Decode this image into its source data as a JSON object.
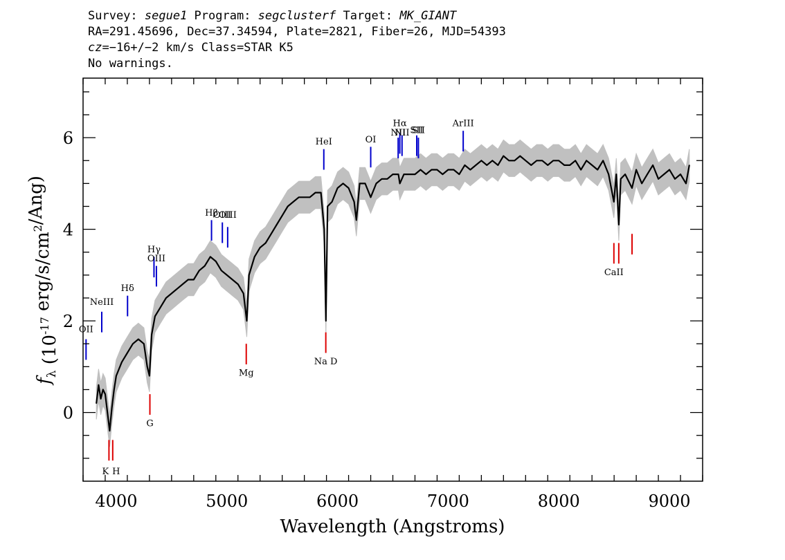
{
  "header": {
    "line1": {
      "survey_label": "Survey: ",
      "survey": "segue1",
      "program_label": " Program: ",
      "program": "segclusterf",
      "target_label": " Target: ",
      "target": "MK_GIANT"
    },
    "line2": "RA=291.45696, Dec=37.34594, Plate=2821, Fiber=26, MJD=54393",
    "line3": {
      "cz_label": "cz",
      "cz_value": "=−16+/−2 km/s Class=STAR K5"
    },
    "line4": "No warnings."
  },
  "colors": {
    "spectrum": "#000000",
    "error_band": "#c0c0c0",
    "emission_lines": "#0000cc",
    "absorption_lines": "#dd0000"
  },
  "chart_data": {
    "type": "line",
    "title": "",
    "xlabel": "Wavelength (Angstroms)",
    "ylabel": "f_λ (10^-17 erg/s/cm^2/Ang)",
    "xlim": [
      3700,
      9300
    ],
    "ylim": [
      -1.5,
      7.3
    ],
    "xticks": [
      4000,
      5000,
      6000,
      7000,
      8000,
      9000
    ],
    "yticks": [
      0,
      2,
      4,
      6
    ],
    "grid": false,
    "series": [
      {
        "x": [
          3820,
          3840,
          3860,
          3880,
          3900,
          3920,
          3940,
          3960,
          3980,
          4000,
          4050,
          4100,
          4150,
          4200,
          4250,
          4280,
          4300,
          4320,
          4350,
          4400,
          4450,
          4500,
          4550,
          4600,
          4650,
          4700,
          4750,
          4800,
          4850,
          4900,
          4950,
          5000,
          5050,
          5100,
          5150,
          5180,
          5200,
          5250,
          5300,
          5350,
          5400,
          5450,
          5500,
          5550,
          5600,
          5650,
          5700,
          5750,
          5800,
          5850,
          5880,
          5895,
          5910,
          5950,
          6000,
          6050,
          6100,
          6150,
          6170,
          6200,
          6250,
          6300,
          6350,
          6400,
          6450,
          6500,
          6550,
          6563,
          6600,
          6650,
          6700,
          6750,
          6800,
          6850,
          6900,
          6950,
          7000,
          7050,
          7100,
          7150,
          7200,
          7250,
          7300,
          7350,
          7400,
          7450,
          7500,
          7550,
          7600,
          7650,
          7700,
          7750,
          7800,
          7850,
          7900,
          7950,
          8000,
          8050,
          8100,
          8150,
          8200,
          8250,
          8300,
          8350,
          8400,
          8450,
          8498,
          8520,
          8542,
          8560,
          8600,
          8662,
          8700,
          8750,
          8800,
          8850,
          8900,
          8950,
          9000,
          9050,
          9100,
          9150,
          9180
        ],
        "y": [
          0.2,
          0.6,
          0.3,
          0.5,
          0.4,
          0.0,
          -0.4,
          0.1,
          0.5,
          0.8,
          1.1,
          1.3,
          1.5,
          1.6,
          1.5,
          1.0,
          0.8,
          1.7,
          2.1,
          2.3,
          2.5,
          2.6,
          2.7,
          2.8,
          2.9,
          2.9,
          3.1,
          3.2,
          3.4,
          3.3,
          3.1,
          3.0,
          2.9,
          2.8,
          2.6,
          2.0,
          3.0,
          3.4,
          3.6,
          3.7,
          3.9,
          4.1,
          4.3,
          4.5,
          4.6,
          4.7,
          4.7,
          4.7,
          4.8,
          4.8,
          4.0,
          2.0,
          4.5,
          4.6,
          4.9,
          5.0,
          4.9,
          4.6,
          4.2,
          5.0,
          5.0,
          4.7,
          5.0,
          5.1,
          5.1,
          5.2,
          5.2,
          5.0,
          5.2,
          5.2,
          5.2,
          5.3,
          5.2,
          5.3,
          5.3,
          5.2,
          5.3,
          5.3,
          5.2,
          5.4,
          5.3,
          5.4,
          5.5,
          5.4,
          5.5,
          5.4,
          5.6,
          5.5,
          5.5,
          5.6,
          5.5,
          5.4,
          5.5,
          5.5,
          5.4,
          5.5,
          5.5,
          5.4,
          5.4,
          5.5,
          5.3,
          5.5,
          5.4,
          5.3,
          5.5,
          5.2,
          4.6,
          5.2,
          4.1,
          5.1,
          5.2,
          4.9,
          5.3,
          5.0,
          5.2,
          5.4,
          5.1,
          5.2,
          5.3,
          5.1,
          5.2,
          5.0,
          5.4
        ]
      }
    ],
    "emission_lines": [
      {
        "label": "OII",
        "x": 3727,
        "y_bottom": 1.15,
        "y_top": 1.6,
        "label_y": 1.75
      },
      {
        "label": "NeIII",
        "x": 3869,
        "y_bottom": 1.75,
        "y_top": 2.2,
        "label_y": 2.35
      },
      {
        "label": "Hδ",
        "x": 4102,
        "y_bottom": 2.1,
        "y_top": 2.55,
        "label_y": 2.65
      },
      {
        "label": "Hγ",
        "x": 4341,
        "y_bottom": 2.95,
        "y_top": 3.4,
        "label_y": 3.5
      },
      {
        "label": "OIII",
        "x": 4363,
        "y_bottom": 2.75,
        "y_top": 3.2,
        "label_y": 3.3
      },
      {
        "label": "Hβ",
        "x": 4861,
        "y_bottom": 3.75,
        "y_top": 4.2,
        "label_y": 4.3
      },
      {
        "label": "OIII",
        "x": 4959,
        "y_bottom": 3.7,
        "y_top": 4.15,
        "label_y": 4.25
      },
      {
        "label": "OIII",
        "x": 5007,
        "y_bottom": 3.6,
        "y_top": 4.05,
        "label_y": 4.25
      },
      {
        "label": "HeI",
        "x": 5876,
        "y_bottom": 5.3,
        "y_top": 5.75,
        "label_y": 5.85
      },
      {
        "label": "OI",
        "x": 6300,
        "y_bottom": 5.35,
        "y_top": 5.8,
        "label_y": 5.9
      },
      {
        "label": "NII",
        "x": 6548,
        "y_bottom": 5.55,
        "y_top": 6.0,
        "label_y": 6.05
      },
      {
        "label": "Hα",
        "x": 6563,
        "y_bottom": 5.65,
        "y_top": 6.1,
        "label_y": 6.25
      },
      {
        "label": "NII",
        "x": 6583,
        "y_bottom": 5.6,
        "y_top": 6.05,
        "label_y": 6.05
      },
      {
        "label": "SII",
        "x": 6716,
        "y_bottom": 5.6,
        "y_top": 6.05,
        "label_y": 6.1
      },
      {
        "label": "SII",
        "x": 6731,
        "y_bottom": 5.55,
        "y_top": 6.0,
        "label_y": 6.1
      },
      {
        "label": "ArIII",
        "x": 7136,
        "y_bottom": 5.7,
        "y_top": 6.15,
        "label_y": 6.25
      }
    ],
    "absorption_lines": [
      {
        "label": "K",
        "x": 3934,
        "y_top": -0.6,
        "y_bottom": -1.05,
        "label_y": -1.35
      },
      {
        "label": "H",
        "x": 3968,
        "y_top": -0.6,
        "y_bottom": -1.05,
        "label_y": -1.35
      },
      {
        "label": "G",
        "x": 4304,
        "y_top": 0.4,
        "y_bottom": -0.05,
        "label_y": -0.3
      },
      {
        "label": "Mg",
        "x": 5175,
        "y_top": 1.5,
        "y_bottom": 1.05,
        "label_y": 0.8
      },
      {
        "label": "Na D",
        "x": 5894,
        "y_top": 1.75,
        "y_bottom": 1.3,
        "label_y": 1.05
      },
      {
        "label": "CaII",
        "x": 8498,
        "y_top": 3.7,
        "y_bottom": 3.25,
        "label_y": 3.0
      },
      {
        "label": "CaII",
        "x": 8542,
        "y_top": 3.7,
        "y_bottom": 3.25,
        "label_y": 3.0
      },
      {
        "label": "CaII",
        "x": 8662,
        "y_top": 3.9,
        "y_bottom": 3.45,
        "label_y": 3.0
      }
    ]
  }
}
